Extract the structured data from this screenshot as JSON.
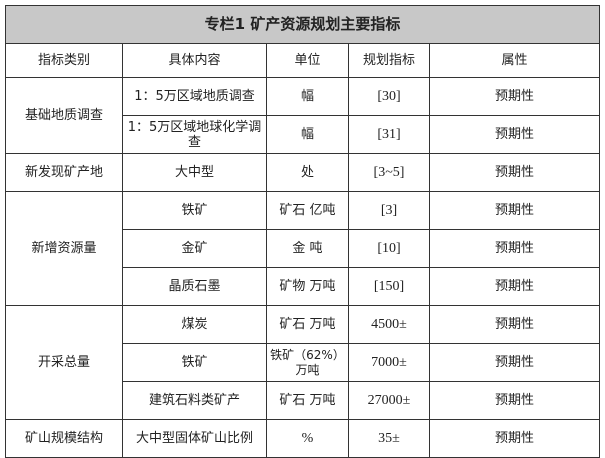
{
  "title": "专栏1  矿产资源规划主要指标",
  "headers": [
    "指标类别",
    "具体内容",
    "单位",
    "规划指标",
    "属性"
  ],
  "groups": [
    {
      "category": "基础地质调查",
      "rows": [
        {
          "content": "1：5万区域地质调查",
          "unit": "幅",
          "target": "[30]",
          "attribute": "预期性"
        },
        {
          "content": "1：5万区域地球化学调查",
          "unit": "幅",
          "target": "[31]",
          "attribute": "预期性"
        }
      ]
    },
    {
      "category": "新发现矿产地",
      "rows": [
        {
          "content": "大中型",
          "unit": "处",
          "target": "[3~5]",
          "attribute": "预期性"
        }
      ]
    },
    {
      "category": "新增资源量",
      "rows": [
        {
          "content": "铁矿",
          "unit": "矿石  亿吨",
          "target": "[3]",
          "attribute": "预期性"
        },
        {
          "content": "金矿",
          "unit": "金  吨",
          "target": "[10]",
          "attribute": "预期性"
        },
        {
          "content": "晶质石墨",
          "unit": "矿物  万吨",
          "target": "[150]",
          "attribute": "预期性"
        }
      ]
    },
    {
      "category": "开采总量",
      "rows": [
        {
          "content": "煤炭",
          "unit": "矿石  万吨",
          "target": "4500±",
          "attribute": "预期性"
        },
        {
          "content": "铁矿",
          "unit": "铁矿（62%）万吨",
          "target": "7000±",
          "attribute": "预期性"
        },
        {
          "content": "建筑石料类矿产",
          "unit": "矿石  万吨",
          "target": "27000±",
          "attribute": "预期性"
        }
      ]
    },
    {
      "category": "矿山规模结构",
      "rows": [
        {
          "content": "大中型固体矿山比例",
          "unit": "%",
          "target": "35±",
          "attribute": "预期性"
        }
      ]
    }
  ]
}
